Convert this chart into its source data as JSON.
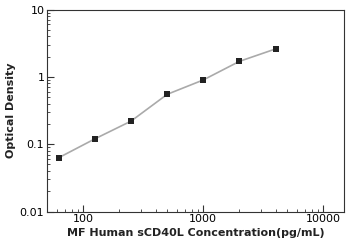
{
  "x_data": [
    62.5,
    125,
    250,
    500,
    1000,
    2000,
    4000
  ],
  "y_data": [
    0.063,
    0.12,
    0.22,
    0.55,
    0.9,
    1.7,
    2.6
  ],
  "xlabel": "MF Human sCD40L Concentration(pg/mL)",
  "ylabel": "Optical Density",
  "xlim": [
    50,
    15000
  ],
  "ylim": [
    0.01,
    10
  ],
  "line_color": "#aaaaaa",
  "marker_color": "#222222",
  "marker": "s",
  "marker_size": 5,
  "background_color": "#ffffff",
  "xticks": [
    100,
    1000,
    10000
  ],
  "yticks": [
    0.01,
    0.1,
    1,
    10
  ],
  "xlabel_fontsize": 8,
  "ylabel_fontsize": 8,
  "tick_fontsize": 8,
  "xlabel_fontweight": "bold",
  "ylabel_fontweight": "bold"
}
